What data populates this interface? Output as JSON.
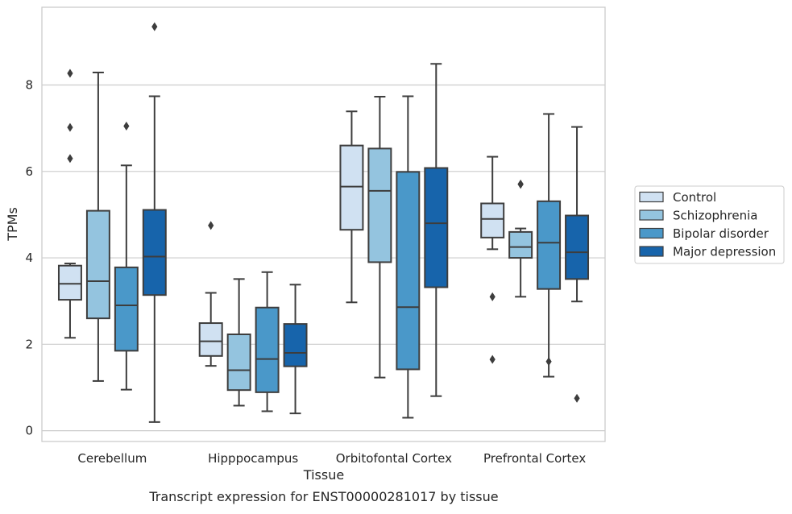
{
  "chart_data": {
    "type": "boxplot",
    "xlabel": "Tissue",
    "ylabel": "TPMs",
    "caption": "Transcript expression for ENST00000281017 by tissue",
    "ylim": [
      -0.25,
      9.8
    ],
    "yticks": [
      0,
      2,
      4,
      6,
      8
    ],
    "ytick_labels": [
      "0",
      "2",
      "4",
      "6",
      "8"
    ],
    "grid": true,
    "legend_position": "right",
    "categories": [
      "Cerebellum",
      "Hipppocampus",
      "Orbitofontal Cortex",
      "Prefrontal Cortex"
    ],
    "series": [
      {
        "name": "Control",
        "color": "#d0e1f2",
        "boxes": [
          {
            "whislo": 2.15,
            "q1": 3.03,
            "med": 3.4,
            "q3": 3.82,
            "whishi": 3.87,
            "fliers": [
              6.3,
              7.02,
              8.27
            ]
          },
          {
            "whislo": 1.5,
            "q1": 1.73,
            "med": 2.07,
            "q3": 2.49,
            "whishi": 3.19,
            "fliers": [
              4.75
            ]
          },
          {
            "whislo": 2.97,
            "q1": 4.65,
            "med": 5.65,
            "q3": 6.6,
            "whishi": 7.39,
            "fliers": []
          },
          {
            "whislo": 4.2,
            "q1": 4.47,
            "med": 4.9,
            "q3": 5.26,
            "whishi": 6.34,
            "fliers": [
              1.65,
              3.1
            ]
          }
        ]
      },
      {
        "name": "Schizophrenia",
        "color": "#94c4df",
        "boxes": [
          {
            "whislo": 1.15,
            "q1": 2.6,
            "med": 3.46,
            "q3": 5.09,
            "whishi": 8.29,
            "fliers": []
          },
          {
            "whislo": 0.58,
            "q1": 0.94,
            "med": 1.4,
            "q3": 2.23,
            "whishi": 3.51,
            "fliers": []
          },
          {
            "whislo": 1.23,
            "q1": 3.9,
            "med": 5.55,
            "q3": 6.53,
            "whishi": 7.73,
            "fliers": []
          },
          {
            "whislo": 3.1,
            "q1": 4.0,
            "med": 4.25,
            "q3": 4.6,
            "whishi": 4.68,
            "fliers": [
              5.71,
              5.7
            ]
          }
        ]
      },
      {
        "name": "Bipolar disorder",
        "color": "#4a98c9",
        "boxes": [
          {
            "whislo": 0.95,
            "q1": 1.85,
            "med": 2.9,
            "q3": 3.78,
            "whishi": 6.14,
            "fliers": [
              7.05
            ]
          },
          {
            "whislo": 0.45,
            "q1": 0.89,
            "med": 1.66,
            "q3": 2.85,
            "whishi": 3.67,
            "fliers": []
          },
          {
            "whislo": 0.3,
            "q1": 1.42,
            "med": 2.86,
            "q3": 5.99,
            "whishi": 7.74,
            "fliers": []
          },
          {
            "whislo": 1.25,
            "q1": 3.28,
            "med": 4.35,
            "q3": 5.31,
            "whishi": 7.33,
            "fliers": [
              1.6
            ]
          }
        ]
      },
      {
        "name": "Major depression",
        "color": "#1764ab",
        "boxes": [
          {
            "whislo": 0.2,
            "q1": 3.14,
            "med": 4.03,
            "q3": 5.11,
            "whishi": 7.74,
            "fliers": [
              9.35
            ]
          },
          {
            "whislo": 0.4,
            "q1": 1.49,
            "med": 1.8,
            "q3": 2.47,
            "whishi": 3.38,
            "fliers": []
          },
          {
            "whislo": 0.8,
            "q1": 3.32,
            "med": 4.8,
            "q3": 6.08,
            "whishi": 8.49,
            "fliers": []
          },
          {
            "whislo": 2.99,
            "q1": 3.51,
            "med": 4.13,
            "q3": 4.98,
            "whishi": 7.03,
            "fliers": [
              0.75
            ]
          }
        ]
      }
    ]
  }
}
